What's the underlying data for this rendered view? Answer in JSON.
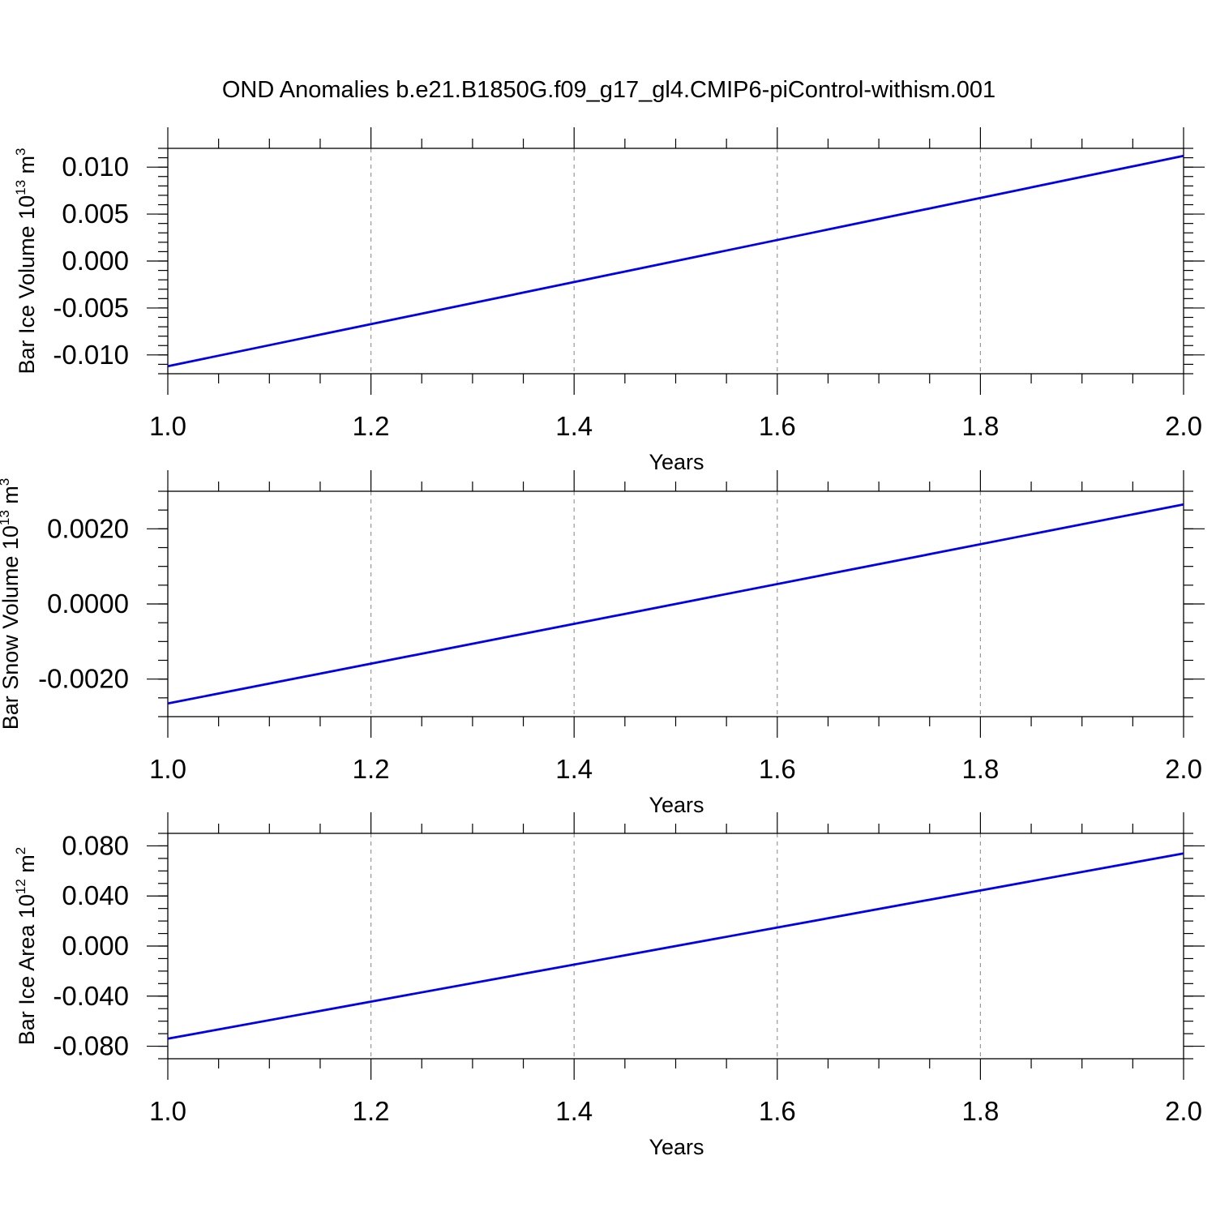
{
  "title": "OND Anomalies b.e21.B1850G.f09_g17_gl4.CMIP6-piControl-withism.001",
  "colors": {
    "series": "#0000ee",
    "grid": "#999999",
    "axes": "#000000"
  },
  "chart_data": [
    {
      "type": "line",
      "xlabel": "Years",
      "ylabel": {
        "main": "Bar Ice Volume 10",
        "sup": "13",
        "unit": " m",
        "unit_sup": "3"
      },
      "xlim": [
        1.0,
        2.0
      ],
      "ylim": [
        -0.012,
        0.012
      ],
      "x_ticks": [
        "1.0",
        "1.2",
        "1.4",
        "1.6",
        "1.8",
        "2.0"
      ],
      "y_ticks": [
        "0.010",
        "0.005",
        "0.000",
        "-0.005",
        "-0.010"
      ],
      "y_tick_values": [
        0.01,
        0.005,
        0.0,
        -0.005,
        -0.01
      ],
      "y_minor_step": 0.001,
      "x": [
        1.0,
        2.0
      ],
      "y": [
        -0.0112,
        0.0112
      ]
    },
    {
      "type": "line",
      "xlabel": "Years",
      "ylabel": {
        "main": "Bar Snow Volume 10",
        "sup": "13",
        "unit": " m",
        "unit_sup": "3"
      },
      "xlim": [
        1.0,
        2.0
      ],
      "ylim": [
        -0.003,
        0.003
      ],
      "x_ticks": [
        "1.0",
        "1.2",
        "1.4",
        "1.6",
        "1.8",
        "2.0"
      ],
      "y_ticks": [
        "0.0020",
        "0.0000",
        "-0.0020"
      ],
      "y_tick_values": [
        0.002,
        0.0,
        -0.002
      ],
      "y_minor_step": 0.0005,
      "x": [
        1.0,
        2.0
      ],
      "y": [
        -0.00265,
        0.00265
      ]
    },
    {
      "type": "line",
      "xlabel": "Years",
      "ylabel": {
        "main": "Bar Ice Area 10",
        "sup": "12",
        "unit": " m",
        "unit_sup": "2"
      },
      "xlim": [
        1.0,
        2.0
      ],
      "ylim": [
        -0.09,
        0.09
      ],
      "x_ticks": [
        "1.0",
        "1.2",
        "1.4",
        "1.6",
        "1.8",
        "2.0"
      ],
      "y_ticks": [
        "0.080",
        "0.040",
        "0.000",
        "-0.040",
        "-0.080"
      ],
      "y_tick_values": [
        0.08,
        0.04,
        0.0,
        -0.04,
        -0.08
      ],
      "y_minor_step": 0.01,
      "x": [
        1.0,
        2.0
      ],
      "y": [
        -0.074,
        0.074
      ]
    }
  ]
}
